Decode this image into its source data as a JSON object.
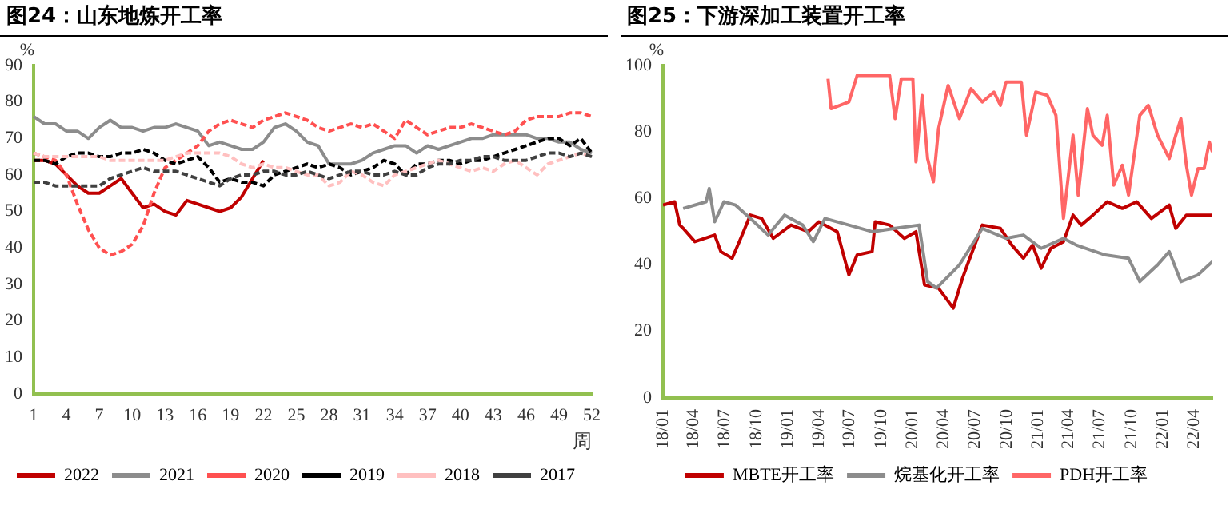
{
  "chart_data": [
    {
      "type": "line",
      "title": "图24：山东地炼开工率",
      "ylabel": "%",
      "xlabel": "周",
      "legend": "bottom",
      "ylim": [
        0,
        90
      ],
      "yticks": [
        0,
        10,
        20,
        30,
        40,
        50,
        60,
        70,
        80,
        90
      ],
      "categories": [
        "1",
        null,
        null,
        "4",
        null,
        null,
        "7",
        null,
        null,
        "10",
        null,
        null,
        "13",
        null,
        null,
        "16",
        null,
        null,
        "19",
        null,
        null,
        "22",
        null,
        null,
        "25",
        null,
        null,
        "28",
        null,
        null,
        "31",
        null,
        null,
        "34",
        null,
        null,
        "37",
        null,
        null,
        "40",
        null,
        null,
        "43",
        null,
        null,
        "46",
        null,
        null,
        "49",
        null,
        null,
        "52"
      ],
      "series": [
        {
          "name": "2022",
          "color": "#c00000",
          "line_style": "solid",
          "values": [
            64,
            64,
            63,
            60,
            57,
            55,
            55,
            57,
            59,
            55,
            51,
            52,
            50,
            49,
            53,
            52,
            51,
            50,
            51,
            54,
            59,
            64,
            null,
            null,
            null,
            null,
            null,
            null,
            null,
            null,
            null,
            null,
            null,
            null,
            null,
            null,
            null,
            null,
            null,
            null,
            null,
            null,
            null,
            null,
            null,
            null,
            null,
            null,
            null,
            null,
            null,
            null
          ]
        },
        {
          "name": "2021",
          "color": "#8c8c8c",
          "line_style": "solid",
          "values": [
            76,
            74,
            74,
            72,
            72,
            70,
            73,
            75,
            73,
            73,
            72,
            73,
            73,
            74,
            73,
            72,
            68,
            69,
            68,
            67,
            67,
            69,
            73,
            74,
            72,
            69,
            68,
            63,
            63,
            63,
            64,
            66,
            67,
            68,
            68,
            66,
            68,
            67,
            68,
            69,
            70,
            70,
            71,
            71,
            71,
            71,
            70,
            70,
            69,
            69,
            67,
            66
          ]
        },
        {
          "name": "2020",
          "color": "#ff5050",
          "line_style": "dashed",
          "values": [
            66,
            65,
            64,
            60,
            52,
            45,
            40,
            38,
            39,
            41,
            46,
            55,
            62,
            64,
            66,
            68,
            72,
            74,
            75,
            74,
            73,
            75,
            76,
            77,
            76,
            75,
            73,
            72,
            73,
            74,
            73,
            74,
            72,
            70,
            75,
            73,
            71,
            72,
            73,
            73,
            74,
            73,
            72,
            71,
            72,
            75,
            76,
            76,
            76,
            77,
            77,
            76
          ]
        },
        {
          "name": "2019",
          "color": "#000000",
          "line_style": "dashed",
          "values": [
            64,
            64,
            63,
            65,
            66,
            66,
            65,
            65,
            66,
            66,
            67,
            66,
            64,
            63,
            64,
            65,
            62,
            58,
            59,
            58,
            58,
            57,
            60,
            61,
            62,
            63,
            62,
            63,
            62,
            60,
            61,
            62,
            64,
            63,
            60,
            63,
            63,
            64,
            64,
            63,
            64,
            64,
            65,
            66,
            67,
            68,
            69,
            70,
            70,
            68,
            70,
            66
          ]
        },
        {
          "name": "2018",
          "color": "#ffc0c0",
          "line_style": "dashed",
          "values": [
            66,
            65,
            65,
            65,
            65,
            65,
            65,
            64,
            64,
            64,
            64,
            64,
            64,
            65,
            66,
            66,
            66,
            66,
            65,
            63,
            62,
            63,
            62,
            62,
            61,
            60,
            60,
            57,
            58,
            61,
            60,
            58,
            57,
            60,
            61,
            62,
            63,
            64,
            63,
            62,
            61,
            62,
            61,
            63,
            64,
            62,
            60,
            63,
            64,
            65,
            66,
            65
          ]
        },
        {
          "name": "2017",
          "color": "#404040",
          "line_style": "dashed",
          "values": [
            58,
            58,
            57,
            57,
            57,
            57,
            57,
            59,
            60,
            61,
            62,
            61,
            61,
            61,
            60,
            59,
            58,
            57,
            59,
            60,
            60,
            61,
            61,
            60,
            60,
            61,
            60,
            59,
            60,
            61,
            61,
            60,
            60,
            61,
            60,
            60,
            62,
            63,
            63,
            64,
            64,
            65,
            65,
            64,
            64,
            64,
            65,
            66,
            66,
            65,
            66,
            65
          ]
        }
      ]
    },
    {
      "type": "line",
      "title": "图25：下游深加工装置开工率",
      "ylabel": "%",
      "legend": "bottom",
      "ylim": [
        0,
        100
      ],
      "yticks": [
        0,
        20,
        40,
        60,
        80,
        100
      ],
      "xlim": [
        "2018-01-01",
        "2022-05-25"
      ],
      "xticks": [
        {
          "value": "2018-01",
          "label": "18/01"
        },
        {
          "value": "2018-04",
          "label": "18/04"
        },
        {
          "value": "2018-07",
          "label": "18/07"
        },
        {
          "value": "2018-10",
          "label": "18/10"
        },
        {
          "value": "2019-01",
          "label": "19/01"
        },
        {
          "value": "2019-04",
          "label": "19/04"
        },
        {
          "value": "2019-07",
          "label": "19/07"
        },
        {
          "value": "2019-10",
          "label": "19/10"
        },
        {
          "value": "2020-01",
          "label": "20/01"
        },
        {
          "value": "2020-04",
          "label": "20/04"
        },
        {
          "value": "2020-07",
          "label": "20/07"
        },
        {
          "value": "2020-10",
          "label": "20/10"
        },
        {
          "value": "2021-01",
          "label": "21/01"
        },
        {
          "value": "2021-04",
          "label": "21/04"
        },
        {
          "value": "2021-07",
          "label": "21/07"
        },
        {
          "value": "2021-10",
          "label": "21/10"
        },
        {
          "value": "2022-01",
          "label": "22/01"
        },
        {
          "value": "2022-04",
          "label": "22/04"
        }
      ],
      "series": [
        {
          "name": "MBTE开工率",
          "color": "#c00000",
          "x": [
            "2018-01-01",
            "2018-02-04",
            "2018-02-19",
            "2018-03-01",
            "2018-04-04",
            "2018-06-01",
            "2018-06-19",
            "2018-07-22",
            "2018-08-16",
            "2018-09-13",
            "2018-10-16",
            "2018-11-19",
            "2019-01-10",
            "2019-03-01",
            "2019-04-01",
            "2019-05-25",
            "2019-06-28",
            "2019-07-22",
            "2019-09-04",
            "2019-09-13",
            "2019-10-25",
            "2019-12-07",
            "2020-01-10",
            "2020-02-04",
            "2020-03-16",
            "2020-04-28",
            "2020-05-25",
            "2020-06-19",
            "2020-07-22",
            "2020-09-13",
            "2020-10-16",
            "2020-11-19",
            "2020-12-16",
            "2021-01-10",
            "2021-02-07",
            "2021-03-16",
            "2021-04-13",
            "2021-05-07",
            "2021-06-10",
            "2021-07-22",
            "2021-09-04",
            "2021-10-16",
            "2021-11-28",
            "2022-01-19",
            "2022-02-07",
            "2022-03-10",
            "2022-05-25"
          ],
          "values": [
            58,
            59,
            52,
            51,
            47,
            49,
            44,
            42,
            48,
            55,
            54,
            48,
            52,
            50,
            53,
            50,
            37,
            43,
            44,
            53,
            52,
            48,
            50,
            34,
            33,
            27,
            36,
            43,
            52,
            51,
            46,
            42,
            46,
            39,
            45,
            47,
            55,
            52,
            55,
            59,
            57,
            59,
            54,
            58,
            51,
            55,
            55
          ]
        },
        {
          "name": "烷基化开工率",
          "color": "#8c8c8c",
          "x": [
            "2018-03-01",
            "2018-05-07",
            "2018-05-16",
            "2018-06-01",
            "2018-06-28",
            "2018-08-01",
            "2018-09-13",
            "2018-11-04",
            "2018-12-22",
            "2019-02-13",
            "2019-03-16",
            "2019-04-19",
            "2019-06-28",
            "2019-09-04",
            "2019-11-10",
            "2020-01-19",
            "2020-02-13",
            "2020-03-10",
            "2020-05-16",
            "2020-07-22",
            "2020-09-29",
            "2020-11-19",
            "2021-01-10",
            "2021-03-16",
            "2021-04-22",
            "2021-07-16",
            "2021-09-22",
            "2021-10-25",
            "2021-12-16",
            "2022-01-19",
            "2022-02-22",
            "2022-04-13",
            "2022-05-25"
          ],
          "values": [
            57,
            59,
            63,
            53,
            59,
            58,
            54,
            49,
            55,
            52,
            47,
            54,
            52,
            50,
            51,
            52,
            35,
            33,
            40,
            51,
            48,
            49,
            45,
            48,
            46,
            43,
            42,
            35,
            40,
            44,
            35,
            37,
            41
          ]
        },
        {
          "name": "PDH开工率",
          "color": "#ff6666",
          "x": [
            "2019-04-28",
            "2019-05-07",
            "2019-06-28",
            "2019-07-22",
            "2019-10-25",
            "2019-11-10",
            "2019-11-28",
            "2020-01-01",
            "2020-01-10",
            "2020-01-28",
            "2020-02-13",
            "2020-03-01",
            "2020-03-16",
            "2020-04-13",
            "2020-05-16",
            "2020-06-19",
            "2020-07-22",
            "2020-08-25",
            "2020-09-13",
            "2020-09-29",
            "2020-11-13",
            "2020-11-28",
            "2020-12-25",
            "2021-01-28",
            "2021-02-22",
            "2021-03-16",
            "2021-04-13",
            "2021-04-28",
            "2021-05-25",
            "2021-06-10",
            "2021-07-07",
            "2021-07-22",
            "2021-08-10",
            "2021-09-04",
            "2021-09-22",
            "2021-10-25",
            "2021-11-19",
            "2021-12-16",
            "2022-01-19",
            "2022-02-07",
            "2022-02-22",
            "2022-03-10",
            "2022-03-25",
            "2022-04-13",
            "2022-05-01",
            "2022-05-16",
            "2022-05-25"
          ],
          "values": [
            96,
            87,
            89,
            97,
            97,
            84,
            96,
            96,
            71,
            91,
            72,
            65,
            81,
            94,
            84,
            93,
            89,
            92,
            88,
            95,
            95,
            79,
            92,
            91,
            85,
            54,
            79,
            61,
            87,
            79,
            76,
            85,
            64,
            70,
            61,
            85,
            88,
            79,
            72,
            79,
            84,
            70,
            61,
            69,
            69,
            77,
            74
          ]
        }
      ]
    }
  ]
}
